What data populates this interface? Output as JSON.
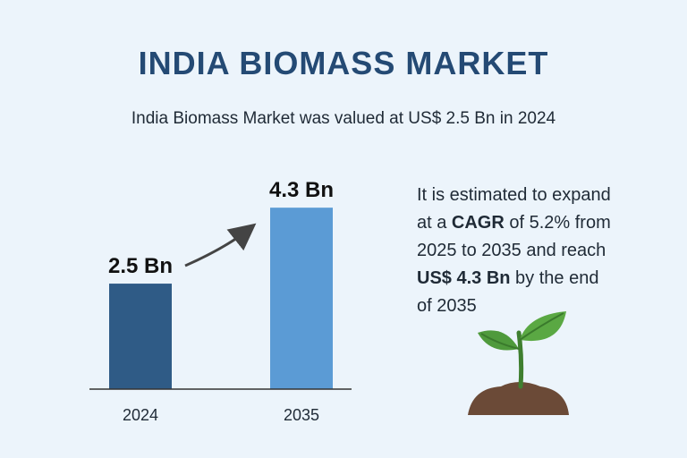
{
  "title": "INDIA BIOMASS MARKET",
  "subtitle": "India Biomass Market was valued at US$ 2.5 Bn in 2024",
  "description": {
    "line1": "It is estimated to expand",
    "line2_pre": "at a ",
    "line2_bold": "CAGR",
    "line2_post": " of 5.2% from",
    "line3": "2025 to 2035 and reach",
    "line4_bold": "US$ 4.3 Bn",
    "line4_post": " by the end",
    "line5": "of 2035"
  },
  "colors": {
    "title": "#244a74",
    "bar_2024": "#2f5b86",
    "bar_2035": "#5b9bd5",
    "arrow": "#444444",
    "leaf": "#4f9a3c",
    "soil": "#6b4a37"
  },
  "chart_data": {
    "type": "bar",
    "categories": [
      "2024",
      "2035"
    ],
    "values": [
      2.5,
      4.3
    ],
    "data_labels": [
      "2.5 Bn",
      "4.3 Bn"
    ],
    "title": "",
    "xlabel": "",
    "ylabel": "",
    "ylim": [
      0,
      4.6
    ],
    "grid": false,
    "trend_arrow": true
  }
}
